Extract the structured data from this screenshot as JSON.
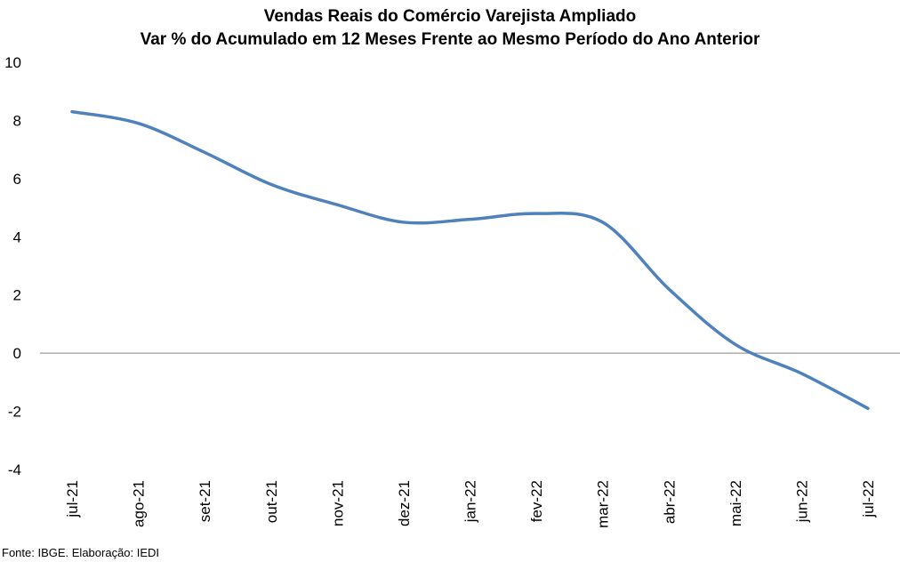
{
  "chart_data": {
    "type": "line",
    "title": "Vendas Reais do Comércio Varejista Ampliado",
    "subtitle": "Var % do Acumulado em 12 Meses Frente ao Mesmo Período do Ano Anterior",
    "xlabel": "",
    "ylabel": "",
    "categories": [
      "jul-21",
      "ago-21",
      "set-21",
      "out-21",
      "nov-21",
      "dez-21",
      "jan-22",
      "fev-22",
      "mar-22",
      "abr-22",
      "mai-22",
      "jun-22",
      "jul-22"
    ],
    "series": [
      {
        "values": [
          8.3,
          7.9,
          6.9,
          5.8,
          5.1,
          4.5,
          4.6,
          4.8,
          4.5,
          2.2,
          0.3,
          -0.7,
          -1.9
        ]
      }
    ],
    "yticks": [
      "10",
      "8",
      "6",
      "4",
      "2",
      "0",
      "-2",
      "-4"
    ],
    "ylim": [
      -4,
      10
    ],
    "grid": false,
    "legend": "none",
    "line_color": "#4f81bd"
  },
  "source": "Fonte: IBGE. Elaboração: IEDI"
}
